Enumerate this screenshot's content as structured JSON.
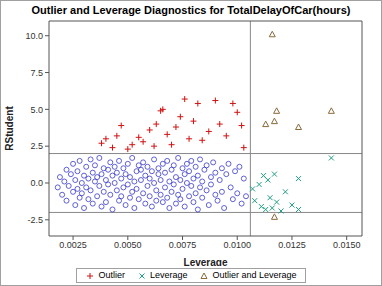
{
  "chart_data": {
    "type": "scatter",
    "title": "Outlier and Leverage Diagnostics for TotalDelayOfCar(hours)",
    "x_label": "Leverage",
    "y_label": "RStudent",
    "xlim": [
      0.0014,
      0.0157
    ],
    "ylim": [
      -3.6,
      11.0
    ],
    "xticks": [
      0.0025,
      {
        "value": 0.005,
        "label": "0.0050"
      },
      0.0075,
      {
        "value": 0.01,
        "label": "0.0100"
      },
      0.0125,
      {
        "value": 0.015,
        "label": "0.0150"
      }
    ],
    "yticks": [
      -2.5,
      {
        "value": 0,
        "label": "0.0"
      },
      2.5,
      {
        "value": 5,
        "label": "5.0"
      },
      7.5,
      {
        "value": 10,
        "label": "10.0"
      }
    ],
    "hlines": [
      -2,
      2
    ],
    "vlines": [
      0.0106
    ],
    "grid": false,
    "legend": "bottom",
    "series": [
      {
        "color": "#3a3acc",
        "marker": "circle",
        "values": [
          [
            0.0018,
            -0.3
          ],
          [
            0.0019,
            0.4
          ],
          [
            0.002,
            -0.8
          ],
          [
            0.0021,
            0.1
          ],
          [
            0.0022,
            -1.2
          ],
          [
            0.0022,
            0.9
          ],
          [
            0.0023,
            -0.2
          ],
          [
            0.0024,
            0.6
          ],
          [
            0.0025,
            -0.6
          ],
          [
            0.0025,
            1.3
          ],
          [
            0.0026,
            -1.5
          ],
          [
            0.0026,
            0.2
          ],
          [
            0.0027,
            -0.4
          ],
          [
            0.0027,
            0.8
          ],
          [
            0.0028,
            -1.0
          ],
          [
            0.0028,
            1.5
          ],
          [
            0.0029,
            0.0
          ],
          [
            0.0029,
            -0.7
          ],
          [
            0.003,
            0.5
          ],
          [
            0.003,
            -1.7
          ],
          [
            0.0031,
            1.1
          ],
          [
            0.0031,
            -0.3
          ],
          [
            0.0032,
            0.3
          ],
          [
            0.0032,
            -1.1
          ],
          [
            0.0033,
            1.6
          ],
          [
            0.0033,
            -0.5
          ],
          [
            0.0034,
            0.7
          ],
          [
            0.0034,
            -1.4
          ],
          [
            0.0035,
            0.1
          ],
          [
            0.0035,
            1.2
          ],
          [
            0.0036,
            -0.9
          ],
          [
            0.0036,
            0.4
          ],
          [
            0.0037,
            -0.2
          ],
          [
            0.0037,
            1.7
          ],
          [
            0.0038,
            -1.6
          ],
          [
            0.0038,
            0.6
          ],
          [
            0.0039,
            -0.6
          ],
          [
            0.0039,
            1.0
          ],
          [
            0.004,
            0.2
          ],
          [
            0.004,
            -1.3
          ],
          [
            0.0041,
            0.9
          ],
          [
            0.0041,
            -0.1
          ],
          [
            0.0042,
            1.4
          ],
          [
            0.0042,
            -0.8
          ],
          [
            0.0043,
            0.5
          ],
          [
            0.0043,
            -1.8
          ],
          [
            0.0044,
            0.0
          ],
          [
            0.0044,
            1.1
          ],
          [
            0.0045,
            -0.5
          ],
          [
            0.0045,
            0.7
          ],
          [
            0.0046,
            -1.2
          ],
          [
            0.0046,
            1.5
          ],
          [
            0.0047,
            0.3
          ],
          [
            0.0047,
            -0.9
          ],
          [
            0.0048,
            1.0
          ],
          [
            0.0048,
            -0.3
          ],
          [
            0.0049,
            0.6
          ],
          [
            0.0049,
            -1.5
          ],
          [
            0.005,
            1.3
          ],
          [
            0.005,
            -0.1
          ],
          [
            0.0051,
            0.4
          ],
          [
            0.0051,
            -1.0
          ],
          [
            0.0052,
            1.7
          ],
          [
            0.0052,
            -0.6
          ],
          [
            0.0053,
            0.1
          ],
          [
            0.0053,
            -1.7
          ],
          [
            0.0054,
            0.8
          ],
          [
            0.0054,
            -0.4
          ],
          [
            0.0055,
            1.2
          ],
          [
            0.0055,
            -1.1
          ],
          [
            0.0056,
            0.2
          ],
          [
            0.0056,
            0.9
          ],
          [
            0.0057,
            -0.7
          ],
          [
            0.0057,
            1.4
          ],
          [
            0.0058,
            -1.4
          ],
          [
            0.0058,
            0.5
          ],
          [
            0.0059,
            -0.2
          ],
          [
            0.0059,
            1.1
          ],
          [
            0.006,
            -0.9
          ],
          [
            0.006,
            0.3
          ],
          [
            0.0061,
            -1.6
          ],
          [
            0.0061,
            0.8
          ],
          [
            0.0062,
            0.0
          ],
          [
            0.0062,
            1.6
          ],
          [
            0.0063,
            -0.5
          ],
          [
            0.0063,
            -1.2
          ],
          [
            0.0064,
            0.6
          ],
          [
            0.0064,
            1.0
          ],
          [
            0.0065,
            -0.8
          ],
          [
            0.0065,
            0.2
          ],
          [
            0.0066,
            -1.3
          ],
          [
            0.0066,
            1.3
          ],
          [
            0.0067,
            -0.3
          ],
          [
            0.0067,
            0.7
          ],
          [
            0.0068,
            -1.0
          ],
          [
            0.0068,
            1.5
          ],
          [
            0.0069,
            0.1
          ],
          [
            0.0069,
            -1.7
          ],
          [
            0.007,
            0.9
          ],
          [
            0.007,
            -0.6
          ],
          [
            0.0071,
            1.2
          ],
          [
            0.0071,
            -0.1
          ],
          [
            0.0072,
            -1.4
          ],
          [
            0.0072,
            0.4
          ],
          [
            0.0073,
            1.7
          ],
          [
            0.0073,
            -0.8
          ],
          [
            0.0074,
            0.2
          ],
          [
            0.0074,
            -1.1
          ],
          [
            0.0075,
            1.0
          ],
          [
            0.0075,
            -0.4
          ],
          [
            0.0076,
            0.6
          ],
          [
            0.0076,
            -1.6
          ],
          [
            0.0077,
            1.3
          ],
          [
            0.0077,
            0.0
          ],
          [
            0.0078,
            -0.9
          ],
          [
            0.0078,
            0.8
          ],
          [
            0.0079,
            -0.2
          ],
          [
            0.0079,
            1.5
          ],
          [
            0.008,
            -1.3
          ],
          [
            0.008,
            0.3
          ],
          [
            0.0081,
            1.1
          ],
          [
            0.0081,
            -0.7
          ],
          [
            0.0082,
            0.5
          ],
          [
            0.0082,
            -1.8
          ],
          [
            0.0083,
            1.6
          ],
          [
            0.0083,
            -0.3
          ],
          [
            0.0084,
            0.1
          ],
          [
            0.0084,
            -1.0
          ],
          [
            0.0085,
            0.9
          ],
          [
            0.0086,
            -0.5
          ],
          [
            0.0086,
            1.2
          ],
          [
            0.0087,
            -1.5
          ],
          [
            0.0088,
            0.4
          ],
          [
            0.0088,
            -0.1
          ],
          [
            0.0089,
            1.4
          ],
          [
            0.009,
            -0.8
          ],
          [
            0.009,
            0.7
          ],
          [
            0.0091,
            -1.2
          ],
          [
            0.0092,
            0.2
          ],
          [
            0.0093,
            1.0
          ],
          [
            0.0093,
            -0.6
          ],
          [
            0.0094,
            -1.7
          ],
          [
            0.0095,
            0.6
          ],
          [
            0.0096,
            1.3
          ],
          [
            0.0097,
            -0.3
          ],
          [
            0.0098,
            -1.1
          ],
          [
            0.0099,
            0.8
          ],
          [
            0.01,
            -0.7
          ],
          [
            0.0101,
            1.1
          ],
          [
            0.0102,
            -1.4
          ],
          [
            0.0103,
            0.3
          ],
          [
            0.0104,
            -0.9
          ]
        ]
      },
      {
        "name": "Outlier",
        "color": "#d01010",
        "marker": "plus",
        "values": [
          [
            0.0038,
            2.7
          ],
          [
            0.004,
            3.0
          ],
          [
            0.0043,
            2.4
          ],
          [
            0.0045,
            3.2
          ],
          [
            0.0047,
            3.9
          ],
          [
            0.005,
            2.3
          ],
          [
            0.0052,
            2.6
          ],
          [
            0.0055,
            3.1
          ],
          [
            0.0057,
            2.8
          ],
          [
            0.006,
            3.6
          ],
          [
            0.0062,
            2.5
          ],
          [
            0.0063,
            4.0
          ],
          [
            0.0065,
            4.9
          ],
          [
            0.0066,
            5.0
          ],
          [
            0.0068,
            3.3
          ],
          [
            0.007,
            2.6
          ],
          [
            0.0072,
            3.8
          ],
          [
            0.0074,
            4.5
          ],
          [
            0.0076,
            5.7
          ],
          [
            0.0078,
            3.0
          ],
          [
            0.008,
            4.2
          ],
          [
            0.0082,
            5.4
          ],
          [
            0.0084,
            2.9
          ],
          [
            0.0087,
            3.5
          ],
          [
            0.009,
            5.6
          ],
          [
            0.0092,
            4.0
          ],
          [
            0.0095,
            3.2
          ],
          [
            0.0098,
            5.4
          ],
          [
            0.01,
            4.8
          ],
          [
            0.0102,
            3.9
          ],
          [
            0.0103,
            2.4
          ]
        ]
      },
      {
        "name": "Leverage",
        "color": "#1f9f86",
        "marker": "x",
        "values": [
          [
            0.0107,
            -0.4
          ],
          [
            0.0108,
            -1.2
          ],
          [
            0.011,
            -0.1
          ],
          [
            0.0111,
            -1.6
          ],
          [
            0.0112,
            0.5
          ],
          [
            0.0113,
            -1.8
          ],
          [
            0.0114,
            0.2
          ],
          [
            0.0115,
            -1.0
          ],
          [
            0.0116,
            -1.7
          ],
          [
            0.0117,
            0.6
          ],
          [
            0.0118,
            -1.3
          ],
          [
            0.012,
            -1.9
          ],
          [
            0.0122,
            -0.6
          ],
          [
            0.0125,
            -1.5
          ],
          [
            0.0128,
            0.3
          ],
          [
            0.0128,
            -1.8
          ],
          [
            0.0143,
            1.7
          ]
        ]
      },
      {
        "name": "Outlier and Leverage",
        "color": "#8a6a3a",
        "marker": "triangle",
        "values": [
          [
            0.0113,
            4.0
          ],
          [
            0.0116,
            10.1
          ],
          [
            0.0117,
            4.2
          ],
          [
            0.0118,
            4.9
          ],
          [
            0.0128,
            3.8
          ],
          [
            0.0143,
            4.9
          ],
          [
            0.0117,
            -2.3
          ]
        ]
      }
    ]
  }
}
